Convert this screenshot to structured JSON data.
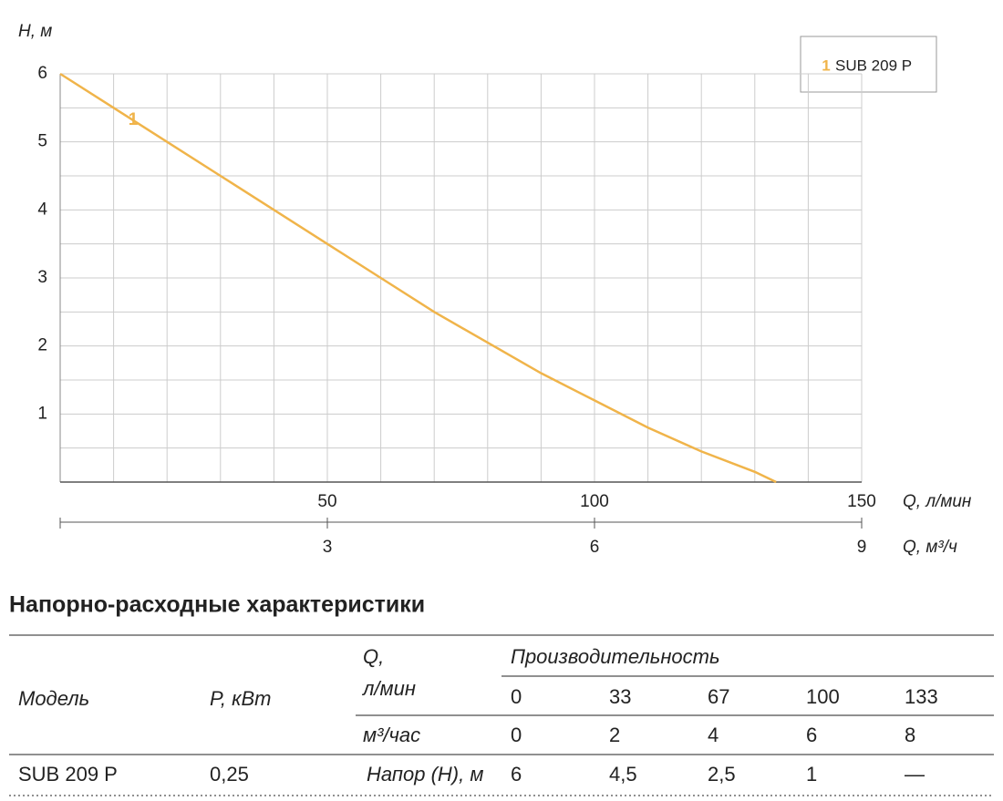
{
  "chart_data": {
    "type": "line",
    "y_label": "Н, м",
    "x_label": "Q, л/мин",
    "x2_label": "Q, м³/ч",
    "x": [
      0,
      10,
      20,
      30,
      40,
      50,
      60,
      70,
      80,
      90,
      100,
      110,
      120,
      130,
      134
    ],
    "series": [
      {
        "name": "SUB 209 P",
        "curve_label": "1",
        "color": "#f0b44a",
        "values": [
          6,
          5.5,
          5.0,
          4.5,
          4.0,
          3.5,
          3.0,
          2.5,
          2.05,
          1.6,
          1.2,
          0.8,
          0.45,
          0.15,
          0
        ]
      }
    ],
    "xlim": [
      0,
      150
    ],
    "xticks": [
      50,
      100,
      150
    ],
    "x2lim": [
      0,
      9
    ],
    "x2ticks": [
      3,
      6,
      9
    ],
    "ylim": [
      0,
      6
    ],
    "yticks": [
      1,
      2,
      3,
      4,
      5,
      6
    ],
    "xgrid": [
      10,
      20,
      30,
      40,
      50,
      60,
      70,
      80,
      90,
      100,
      110,
      120,
      130,
      140,
      150
    ],
    "ygrid": [
      0.5,
      1,
      1.5,
      2,
      2.5,
      3,
      3.5,
      4,
      4.5,
      5,
      5.5,
      6
    ],
    "legend": "top-right"
  },
  "table": {
    "title": "Напорно-расходные характеристики",
    "model_header": "Модель",
    "power_header": "P, кВт",
    "q_header": [
      "Q,",
      "л/мин"
    ],
    "performance_header": "Производительность",
    "q_values": [
      "0",
      "33",
      "67",
      "100",
      "133"
    ],
    "m3_header": "м³/час",
    "m3_values": [
      "0",
      "2",
      "4",
      "6",
      "8"
    ],
    "rows": [
      [
        "SUB 209 P",
        "0,25",
        "Напор (Н), м",
        "6",
        "4,5",
        "2,5",
        "1",
        "—"
      ]
    ]
  }
}
